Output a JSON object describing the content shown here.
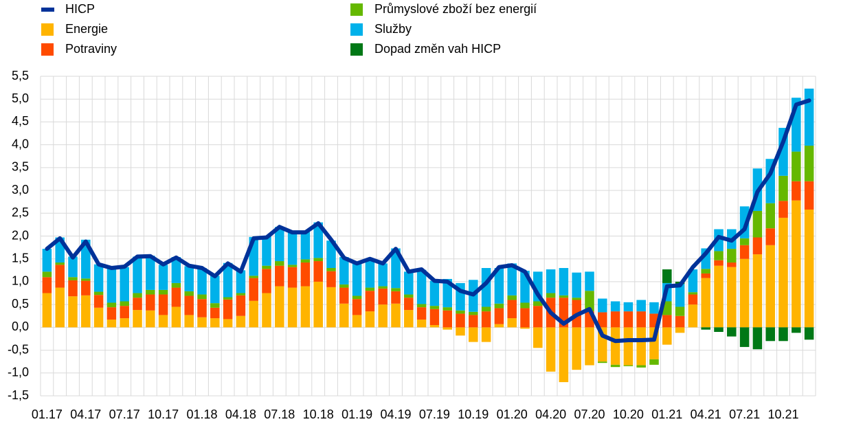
{
  "chart_data": {
    "type": "bar",
    "categories": [
      "01.17",
      null,
      null,
      "04.17",
      null,
      null,
      "07.17",
      null,
      null,
      "10.17",
      null,
      null,
      "01.18",
      null,
      null,
      "04.18",
      null,
      null,
      "07.18",
      null,
      null,
      "10.18",
      null,
      null,
      "01.19",
      null,
      null,
      "04.19",
      null,
      null,
      "07.19",
      null,
      null,
      "10.19",
      null,
      null,
      "01.20",
      null,
      null,
      "04.20",
      null,
      null,
      "07.20",
      null,
      null,
      "10.20",
      null,
      null,
      "01.21",
      null,
      null,
      "04.21",
      null,
      null,
      "07.21",
      null,
      null,
      "10.21",
      null,
      null
    ],
    "series": [
      {
        "name": "HICP",
        "type": "line",
        "color": "#003299",
        "values": [
          1.72,
          1.95,
          1.53,
          1.88,
          1.38,
          1.3,
          1.33,
          1.55,
          1.56,
          1.38,
          1.53,
          1.35,
          1.3,
          1.12,
          1.4,
          1.22,
          1.95,
          1.97,
          2.2,
          2.08,
          2.08,
          2.28,
          1.92,
          1.52,
          1.4,
          1.5,
          1.4,
          1.72,
          1.22,
          1.27,
          1.02,
          1.0,
          0.8,
          0.72,
          0.97,
          1.32,
          1.36,
          1.22,
          0.72,
          0.32,
          0.08,
          0.27,
          0.4,
          -0.18,
          -0.3,
          -0.28,
          -0.28,
          -0.27,
          0.9,
          0.92,
          1.32,
          1.62,
          1.98,
          1.9,
          2.15,
          2.97,
          3.37,
          4.07,
          4.88,
          4.97
        ]
      },
      {
        "name": "Energie",
        "color": "#ffb400",
        "values": [
          0.75,
          0.87,
          0.68,
          0.7,
          0.43,
          0.17,
          0.2,
          0.38,
          0.37,
          0.27,
          0.45,
          0.27,
          0.22,
          0.2,
          0.18,
          0.25,
          0.58,
          0.75,
          0.9,
          0.87,
          0.9,
          1.0,
          0.88,
          0.52,
          0.27,
          0.35,
          0.5,
          0.52,
          0.38,
          0.17,
          0.05,
          -0.05,
          -0.18,
          -0.32,
          -0.32,
          0.07,
          0.2,
          -0.03,
          -0.45,
          -0.97,
          -1.2,
          -0.93,
          -0.83,
          -0.75,
          -0.82,
          -0.83,
          -0.83,
          -0.7,
          -0.38,
          -0.12,
          0.5,
          1.08,
          1.35,
          1.32,
          1.5,
          1.6,
          1.8,
          2.4,
          2.78,
          2.58
        ]
      },
      {
        "name": "Potraviny",
        "color": "#ff4b00",
        "values": [
          0.35,
          0.5,
          0.35,
          0.32,
          0.28,
          0.27,
          0.27,
          0.27,
          0.35,
          0.45,
          0.42,
          0.42,
          0.4,
          0.23,
          0.43,
          0.45,
          0.5,
          0.53,
          0.45,
          0.45,
          0.52,
          0.45,
          0.35,
          0.35,
          0.35,
          0.45,
          0.35,
          0.27,
          0.27,
          0.27,
          0.35,
          0.37,
          0.3,
          0.27,
          0.35,
          0.35,
          0.4,
          0.42,
          0.47,
          0.65,
          0.65,
          0.6,
          0.35,
          0.33,
          0.35,
          0.35,
          0.35,
          0.3,
          0.27,
          0.25,
          0.22,
          0.1,
          0.12,
          0.1,
          0.3,
          0.37,
          0.37,
          0.37,
          0.42,
          0.62
        ]
      },
      {
        "name": "Průmyslové zboží bez energií",
        "color": "#65b800",
        "values": [
          0.12,
          0.05,
          0.07,
          0.05,
          0.07,
          0.1,
          0.1,
          0.1,
          0.1,
          0.1,
          0.1,
          0.1,
          0.1,
          0.1,
          0.05,
          0.05,
          0.05,
          0.07,
          0.1,
          0.05,
          0.07,
          0.07,
          0.07,
          0.07,
          0.07,
          0.07,
          0.05,
          0.07,
          0.07,
          0.07,
          0.07,
          0.07,
          0.07,
          0.07,
          0.1,
          0.1,
          0.1,
          0.12,
          0.1,
          0.1,
          0.05,
          0.05,
          0.45,
          -0.03,
          -0.05,
          -0.02,
          -0.05,
          -0.12,
          0.3,
          0.2,
          0.05,
          0.1,
          0.2,
          0.3,
          0.15,
          0.58,
          0.55,
          0.55,
          0.65,
          0.78
        ]
      },
      {
        "name": "Služby",
        "color": "#00b1ea",
        "values": [
          0.5,
          0.55,
          0.45,
          0.85,
          0.6,
          0.76,
          0.75,
          0.8,
          0.75,
          0.55,
          0.57,
          0.55,
          0.58,
          0.6,
          0.75,
          0.5,
          0.85,
          0.65,
          0.75,
          0.72,
          0.6,
          0.78,
          0.6,
          0.6,
          0.7,
          0.6,
          0.5,
          0.87,
          0.5,
          0.75,
          0.55,
          0.62,
          0.6,
          0.7,
          0.85,
          0.78,
          0.7,
          0.7,
          0.65,
          0.52,
          0.6,
          0.55,
          0.42,
          0.3,
          0.22,
          0.2,
          0.25,
          0.25,
          0.4,
          0.5,
          0.5,
          0.45,
          0.48,
          0.43,
          0.7,
          0.93,
          0.97,
          1.05,
          1.18,
          1.25
        ]
      },
      {
        "name": "Dopad změn vah HICP",
        "color": "#007816",
        "values": [
          0,
          0,
          0,
          0,
          0,
          0,
          0,
          0,
          0,
          0,
          0,
          0,
          0,
          0,
          0,
          0,
          0,
          0,
          0,
          0,
          0,
          0,
          0,
          0,
          0,
          0,
          0,
          0,
          0,
          0,
          0,
          0,
          0,
          0,
          0,
          0,
          0,
          0,
          0,
          0,
          0,
          0,
          0,
          0,
          0,
          0,
          0,
          0,
          0.3,
          0.05,
          0,
          -0.05,
          -0.1,
          -0.2,
          -0.43,
          -0.48,
          -0.3,
          -0.3,
          -0.12,
          -0.27
        ]
      }
    ],
    "ylim": [
      -1.5,
      5.5
    ],
    "yticks": [
      {
        "value": -1.5,
        "label": "-1,5"
      },
      {
        "value": -1,
        "label": "-1,0"
      },
      {
        "value": -0.5,
        "label": "-0,5"
      },
      {
        "value": 0,
        "label": "0,0"
      },
      {
        "value": 0.5,
        "label": "0,5"
      },
      {
        "value": 1,
        "label": "1,0"
      },
      {
        "value": 1.5,
        "label": "1,5"
      },
      {
        "value": 2,
        "label": "2,0"
      },
      {
        "value": 2.5,
        "label": "2,5"
      },
      {
        "value": 3,
        "label": "3,0"
      },
      {
        "value": 3.5,
        "label": "3,5"
      },
      {
        "value": 4,
        "label": "4,0"
      },
      {
        "value": 4.5,
        "label": "4,5"
      },
      {
        "value": 5,
        "label": "5,0"
      },
      {
        "value": 5.5,
        "label": "5,5"
      }
    ],
    "grid": true
  }
}
